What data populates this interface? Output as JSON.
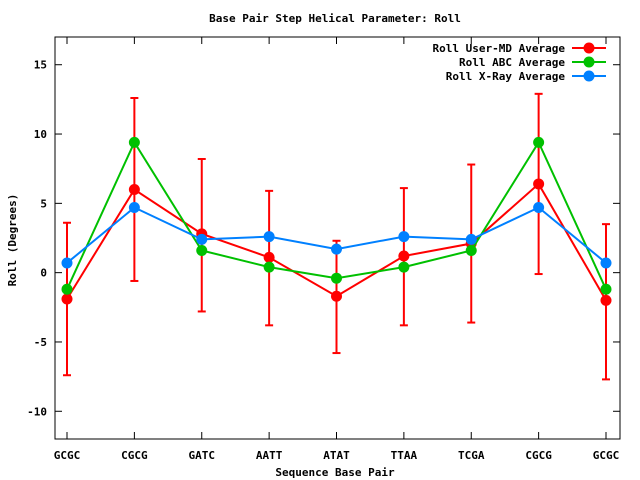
{
  "chart_data": {
    "type": "line",
    "title": "Base Pair Step Helical Parameter: Roll",
    "xlabel": "Sequence Base Pair",
    "ylabel": "Roll (Degrees)",
    "categories": [
      "GCGC",
      "CGCG",
      "GATC",
      "AATT",
      "ATAT",
      "TTAA",
      "TCGA",
      "CGCG",
      "GCGC"
    ],
    "ylim": [
      -12,
      17
    ],
    "yticks": [
      -10,
      -5,
      0,
      5,
      10,
      15
    ],
    "grid": false,
    "legend_position": "top-right",
    "series": [
      {
        "name": "Roll User-MD Average",
        "color": "#ff0000",
        "values": [
          -1.9,
          6.0,
          2.8,
          1.1,
          -1.7,
          1.2,
          2.1,
          6.4,
          -2.0
        ],
        "error_low": [
          -7.4,
          -0.6,
          -2.8,
          -3.8,
          -5.8,
          -3.8,
          -3.6,
          -0.1,
          -7.7
        ],
        "error_high": [
          3.6,
          12.6,
          8.2,
          5.9,
          2.3,
          6.1,
          7.8,
          12.9,
          3.5
        ]
      },
      {
        "name": "Roll ABC Average",
        "color": "#00c000",
        "values": [
          -1.2,
          9.4,
          1.6,
          0.4,
          -0.4,
          0.4,
          1.6,
          9.4,
          -1.2
        ]
      },
      {
        "name": "Roll X-Ray Average",
        "color": "#0080ff",
        "values": [
          0.7,
          4.7,
          2.4,
          2.6,
          1.7,
          2.6,
          2.4,
          4.7,
          0.7
        ]
      }
    ]
  }
}
